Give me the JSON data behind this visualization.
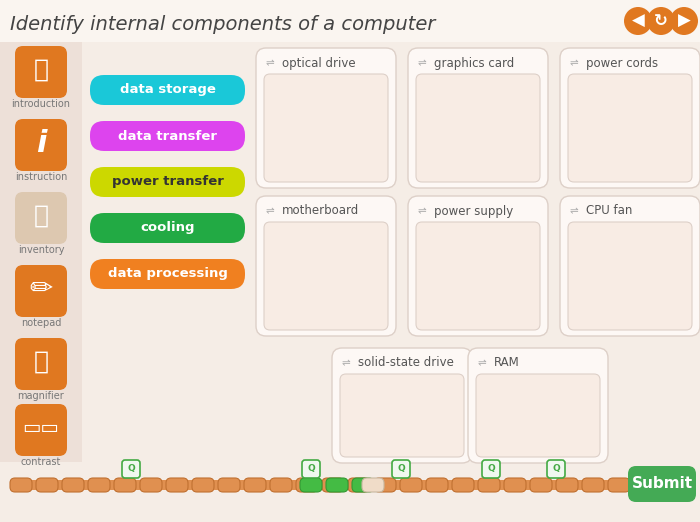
{
  "title": "Identify internal components of a computer",
  "title_color": "#444444",
  "bg_color": "#f0e8e0",
  "main_bg": "#f5ede6",
  "header_bg": "#faf5f0",
  "sidebar_bg": "#ede0d8",
  "category_buttons": [
    {
      "label": "data storage",
      "color": "#1ac8d8",
      "text_color": "#ffffff"
    },
    {
      "label": "data transfer",
      "color": "#dd44ee",
      "text_color": "#ffffff"
    },
    {
      "label": "power transfer",
      "color": "#ccd800",
      "text_color": "#333333"
    },
    {
      "label": "cooling",
      "color": "#22aa44",
      "text_color": "#ffffff"
    },
    {
      "label": "data processing",
      "color": "#f08020",
      "text_color": "#ffffff"
    }
  ],
  "drop_zones_row0": [
    "optical drive",
    "graphics card",
    "power cords"
  ],
  "drop_zones_row1": [
    "motherboard",
    "power supply",
    "CPU fan"
  ],
  "drop_zones_row2": [
    "solid-state drive",
    "RAM"
  ],
  "sidebar_icons": [
    {
      "label": "introduction",
      "color": "#e07820"
    },
    {
      "label": "instruction",
      "color": "#e07820"
    },
    {
      "label": "inventory",
      "color": "#e8d0c0"
    },
    {
      "label": "notepad",
      "color": "#e07820"
    },
    {
      "label": "magnifier",
      "color": "#e07820"
    },
    {
      "label": "contrast",
      "color": "#e07820"
    }
  ],
  "nav_button_color": "#e07820",
  "submit_color": "#44aa55",
  "card_bg": "#fdf8f5",
  "card_border": "#ddd0c8",
  "zone_inner_bg": "#f8ece4",
  "zone_inner_border": "#ddd0c8",
  "progress_orange": "#e09050",
  "progress_green": "#44bb44",
  "progress_light": "#f0dcc8"
}
